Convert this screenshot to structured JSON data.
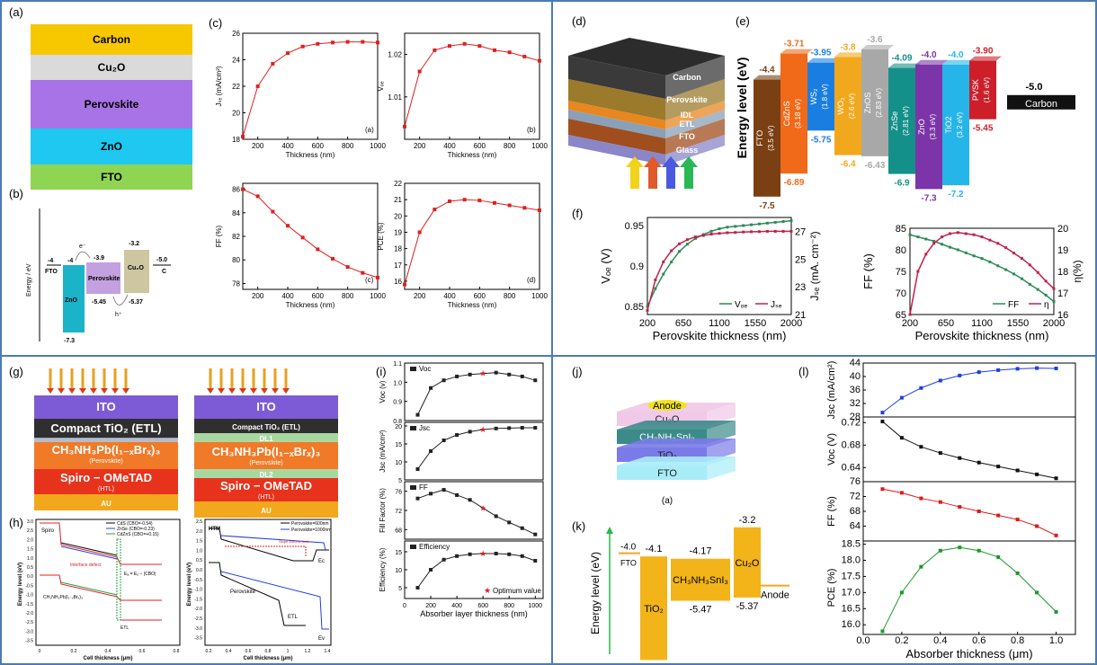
{
  "labels": {
    "a": "(a)",
    "b": "(b)",
    "c": "(c)",
    "d": "(d)",
    "e": "(e)",
    "f": "(f)",
    "g": "(g)",
    "h": "(h)",
    "i": "(i)",
    "j": "(j)",
    "k": "(k)",
    "l": "(l)"
  },
  "panel_a": {
    "layers": [
      {
        "name": "Carbon",
        "color": "#f7c700"
      },
      {
        "name": "Cu₂O",
        "color": "#dadada"
      },
      {
        "name": "Perovskite",
        "color": "#a873e6"
      },
      {
        "name": "ZnO",
        "color": "#1ec8f0"
      },
      {
        "name": "FTO",
        "color": "#8fd452"
      }
    ]
  },
  "panel_b": {
    "ylabel": "Energy / eV",
    "fto_label": "FTO",
    "fto_val": "-4",
    "zno_label": "ZnO",
    "zno_top": "-4",
    "zno_bot": "-7.3",
    "pvk_label": "Perovskite",
    "pvk_top": "-3.9",
    "pvk_bot": "-5.45",
    "cu2o_label": "Cu₂O",
    "cu2o_top": "-3.2",
    "cu2o_bot": "-5.37",
    "c_label": "C",
    "c_val": "-5.0",
    "electron": "e⁻",
    "hole": "h⁺"
  },
  "panel_d": {
    "layers": [
      {
        "name": "Carbon",
        "color": "#3a3a3a"
      },
      {
        "name": "Perovskite",
        "color": "#9b7a2b"
      },
      {
        "name": "IDL",
        "color": "#e8871f"
      },
      {
        "name": "ETL",
        "color": "#8aa0b8"
      },
      {
        "name": "FTO",
        "color": "#a04e1e"
      },
      {
        "name": "Glass",
        "color": "#8a86c8"
      }
    ]
  },
  "panel_e": {
    "ylabel": "Energy level (eV)",
    "materials": [
      {
        "name": "FTO",
        "gap": "(3.5 eV)",
        "top": "-4.4",
        "bot": "-7.5",
        "color": "#7a3f12"
      },
      {
        "name": "CdZnS",
        "gap": "(3.18 eV)",
        "top": "-3.71",
        "bot": "-6.89",
        "color": "#f06a1a"
      },
      {
        "name": "WS₂",
        "gap": "(1.8 eV)",
        "top": "-3.95",
        "bot": "-5.75",
        "color": "#1a7ee0"
      },
      {
        "name": "WO₃",
        "gap": "(2.6 eV)",
        "top": "-3.8",
        "bot": "-6.4",
        "color": "#f2a81c"
      },
      {
        "name": "ZnOS",
        "gap": "(2.83 eV)",
        "top": "-3.6",
        "bot": "-6.43",
        "color": "#a8a8a8"
      },
      {
        "name": "ZnSe",
        "gap": "(2.81 eV)",
        "top": "-4.09",
        "bot": "-6.9",
        "color": "#14908a"
      },
      {
        "name": "ZnO",
        "gap": "(3.3 eV)",
        "top": "-4.0",
        "bot": "-7.3",
        "color": "#7b35a8"
      },
      {
        "name": "TiO2",
        "gap": "(3.2 eV)",
        "top": "-4.0",
        "bot": "-7.2",
        "color": "#26b5e8"
      },
      {
        "name": "PVSK",
        "gap": "(1.6 eV)",
        "top": "-3.90",
        "bot": "-5.45",
        "color": "#cc1f2a"
      }
    ],
    "carbon": {
      "name": "Carbon",
      "val": "-5.0"
    }
  },
  "panel_g": {
    "left": [
      {
        "name": "ITO",
        "color": "#7e5bd6"
      },
      {
        "name": "Compact TiO₂ (ETL)",
        "color": "#2f2f2f"
      },
      {
        "name": "CH₃NH₃Pb(I₁₋ₓBrₓ)₃",
        "sub": "(Perovskite)",
        "color": "#f07a28"
      },
      {
        "name": "Spiro − OMeTAD",
        "sub": "(HTL)",
        "color": "#e8331c"
      },
      {
        "name": "AU",
        "color": "#f2a81c"
      }
    ],
    "right": [
      {
        "name": "ITO",
        "color": "#7e5bd6"
      },
      {
        "name": "Compact TiO₂ (ETL)",
        "color": "#2f2f2f"
      },
      {
        "name": "DL1",
        "color": "#a8d8a0"
      },
      {
        "name": "CH₃NH₃Pb(I₁₋ₓBrₓ)₃",
        "sub": "(Perovskite)",
        "color": "#f07a28"
      },
      {
        "name": "DL2",
        "color": "#a8d8a0"
      },
      {
        "name": "Spiro − OMeTAD",
        "sub": "(HTL)",
        "color": "#e8331c"
      },
      {
        "name": "AU",
        "color": "#f2a81c"
      }
    ]
  },
  "panel_h": {
    "left": {
      "xlabel": "Cell thickness (μm)",
      "ylabel": "Energy level (eV)",
      "legend": [
        "CdS (CBO=-0.54)",
        "ZnSe (CBO=-0.23)",
        "CdZnS (CBO=+0.15)"
      ],
      "spiro": "Spiro",
      "defect": "Interface defect",
      "pvk": "CH₃NH₃Pb(I₁₋ₓBrₓ)₃",
      "etl": "ETL",
      "eq": "Eₐ = Eₒ − |CBO|"
    },
    "right": {
      "xlabel": "Cell thickness (μm)",
      "ylabel": "Energy level (eV)",
      "legend": [
        "Perovskite=600nm",
        "Perovskite=1000nm"
      ],
      "htm": "HTM",
      "field": "Slope-Electric field",
      "pvk": "Perovskite",
      "etl": "ETL",
      "ec": "Ec",
      "ev": "Ev"
    }
  },
  "panel_j": {
    "layers": [
      {
        "name": "Cu₂O",
        "color": "#f0c8e8"
      },
      {
        "name": "CH₃NH₃SnI₃",
        "color": "#3c8a8a"
      },
      {
        "name": "TiO₂",
        "color": "#7a7ae8"
      },
      {
        "name": "FTO",
        "color": "#a8ecf8"
      }
    ],
    "anode": "Anode",
    "caption": "(a)"
  },
  "panel_k": {
    "ylabel": "Energy level (eV)",
    "fto": {
      "name": "FTO",
      "val": "-4.0"
    },
    "tio2": {
      "name": "TiO₂",
      "top": "-4.1",
      "bot": "-7.3"
    },
    "pvk": {
      "name": "CH₃NH₃SnI₃",
      "top": "-4.17",
      "bot": "-5.47"
    },
    "cu2o": {
      "name": "Cu₂O",
      "top": "-3.2",
      "bot": "-5.37"
    },
    "anode": {
      "name": "Anode"
    }
  },
  "chart_data": [
    {
      "id": "c1",
      "type": "line",
      "ylabel": "Jₛₑ (mA/cm²)",
      "xlabel": "Thickness (nm)",
      "sub": "(a)",
      "x": [
        100,
        200,
        300,
        400,
        500,
        600,
        700,
        800,
        900,
        1000
      ],
      "values": [
        18.2,
        22.0,
        23.7,
        24.5,
        25.0,
        25.2,
        25.3,
        25.35,
        25.35,
        25.3
      ],
      "xlim": [
        100,
        1000
      ],
      "ylim": [
        18,
        26
      ],
      "yticks": [
        18,
        20,
        22,
        24,
        26
      ],
      "xticks": [
        200,
        400,
        600,
        800,
        1000
      ],
      "color": "#e02020"
    },
    {
      "id": "c2",
      "type": "line",
      "ylabel": "Vₒₑ",
      "xlabel": "Thickness (nm)",
      "sub": "(b)",
      "x": [
        100,
        200,
        300,
        400,
        500,
        600,
        700,
        800,
        900,
        1000
      ],
      "values": [
        1.003,
        1.016,
        1.021,
        1.022,
        1.0225,
        1.022,
        1.021,
        1.0205,
        1.0195,
        1.0185
      ],
      "xlim": [
        100,
        1000
      ],
      "ylim": [
        1.0,
        1.025
      ],
      "yticks": [
        1.01,
        1.02
      ],
      "xticks": [
        200,
        400,
        600,
        800,
        1000
      ],
      "color": "#e02020"
    },
    {
      "id": "c3",
      "type": "line",
      "ylabel": "FF (%)",
      "xlabel": "Thickness (nm)",
      "sub": "(c)",
      "x": [
        100,
        200,
        300,
        400,
        500,
        600,
        700,
        800,
        900,
        1000
      ],
      "values": [
        86,
        85.4,
        84.1,
        82.9,
        81.9,
        80.9,
        80.1,
        79.4,
        78.9,
        78.5
      ],
      "xlim": [
        100,
        1000
      ],
      "ylim": [
        77.5,
        86.5
      ],
      "yticks": [
        78,
        80,
        82,
        84,
        86
      ],
      "xticks": [
        200,
        400,
        600,
        800,
        1000
      ],
      "color": "#e02020"
    },
    {
      "id": "c4",
      "type": "line",
      "ylabel": "PCE (%)",
      "xlabel": "Thickness (nm)",
      "sub": "(d)",
      "x": [
        100,
        200,
        300,
        400,
        500,
        600,
        700,
        800,
        900,
        1000
      ],
      "values": [
        15.8,
        19.0,
        20.4,
        20.9,
        21.0,
        20.95,
        20.8,
        20.65,
        20.5,
        20.35
      ],
      "xlim": [
        100,
        1000
      ],
      "ylim": [
        15.5,
        22
      ],
      "yticks": [
        16,
        17,
        18,
        19,
        20,
        21,
        22
      ],
      "xticks": [
        200,
        400,
        600,
        800,
        1000
      ],
      "color": "#e02020"
    },
    {
      "id": "f1",
      "type": "line",
      "xlabel": "Perovskite thickness (nm)",
      "ylabel": "Vₒₑ (V)",
      "y2label": "Jₛₑ (mA. cm⁻²)",
      "xlim": [
        200,
        2000
      ],
      "ylim": [
        0.84,
        0.96
      ],
      "y2lim": [
        21,
        28
      ],
      "xticks": [
        200,
        650,
        1100,
        1550,
        2000
      ],
      "yticks": [
        0.85,
        0.9,
        0.95
      ],
      "y2ticks": [
        21,
        23,
        25,
        27
      ],
      "legend": [
        "Vₒₑ",
        "Jₛₑ"
      ],
      "series": [
        {
          "name": "Vₒₑ",
          "axis": "y",
          "color": "#2e8b57",
          "x": [
            200,
            300,
            400,
            500,
            600,
            700,
            800,
            900,
            1000,
            1100,
            1200,
            1300,
            1400,
            1500,
            1600,
            1700,
            1800,
            1900,
            2000
          ],
          "values": [
            0.85,
            0.872,
            0.89,
            0.905,
            0.918,
            0.927,
            0.934,
            0.939,
            0.943,
            0.946,
            0.948,
            0.949,
            0.95,
            0.951,
            0.952,
            0.953,
            0.954,
            0.955,
            0.956
          ]
        },
        {
          "name": "Jₛₑ",
          "axis": "y2",
          "color": "#c0224a",
          "x": [
            200,
            300,
            400,
            500,
            600,
            700,
            800,
            900,
            1000,
            1100,
            1200,
            1300,
            1400,
            1500,
            1600,
            1700,
            1800,
            1900,
            2000
          ],
          "values": [
            21.3,
            23.5,
            24.8,
            25.6,
            26.1,
            26.4,
            26.6,
            26.7,
            26.8,
            26.85,
            26.9,
            26.92,
            26.95,
            26.97,
            26.98,
            27.0,
            27.0,
            27.0,
            27.0
          ]
        }
      ]
    },
    {
      "id": "f2",
      "type": "line",
      "xlabel": "Perovskite thickness (nm)",
      "ylabel": "FF (%)",
      "y2label": "η(%)",
      "xlim": [
        200,
        2000
      ],
      "ylim": [
        65,
        85
      ],
      "y2lim": [
        16,
        20
      ],
      "xticks": [
        200,
        650,
        1100,
        1550,
        2000
      ],
      "yticks": [
        65,
        70,
        75,
        80,
        85
      ],
      "y2ticks": [
        16,
        17,
        18,
        19,
        20
      ],
      "legend": [
        "FF",
        "η"
      ],
      "series": [
        {
          "name": "FF",
          "axis": "y",
          "color": "#2e8b57",
          "x": [
            200,
            300,
            400,
            500,
            600,
            700,
            800,
            900,
            1000,
            1100,
            1200,
            1300,
            1400,
            1500,
            1600,
            1700,
            1800,
            1900,
            2000
          ],
          "values": [
            83.5,
            83.0,
            82.5,
            82.0,
            81.3,
            80.6,
            80.0,
            79.3,
            78.6,
            78.0,
            77.2,
            76.3,
            75.4,
            74.4,
            73.3,
            72.0,
            70.8,
            69.5,
            68.0
          ]
        },
        {
          "name": "η",
          "axis": "y2",
          "color": "#c0224a",
          "x": [
            200,
            300,
            400,
            500,
            600,
            700,
            800,
            900,
            1000,
            1100,
            1200,
            1300,
            1400,
            1500,
            1600,
            1700,
            1800,
            1900,
            2000
          ],
          "values": [
            16.0,
            18.0,
            18.8,
            19.3,
            19.6,
            19.75,
            19.8,
            19.75,
            19.7,
            19.6,
            19.45,
            19.3,
            19.1,
            18.85,
            18.6,
            18.3,
            17.95,
            17.55,
            17.2
          ]
        }
      ]
    },
    {
      "id": "i1",
      "type": "line",
      "ylabel": "Voc (v)",
      "legend": "Voc",
      "x": [
        100,
        200,
        300,
        400,
        500,
        600,
        700,
        800,
        900,
        1000
      ],
      "values": [
        0.83,
        0.97,
        1.01,
        1.03,
        1.04,
        1.045,
        1.05,
        1.04,
        1.03,
        1.01
      ],
      "ylim": [
        0.8,
        1.1
      ],
      "yticks": [
        0.8,
        0.9,
        1.0,
        1.1
      ],
      "star": 5
    },
    {
      "id": "i2",
      "type": "line",
      "ylabel": "Jsc (mA/cm²)",
      "legend": "Jsc",
      "x": [
        100,
        200,
        300,
        400,
        500,
        600,
        700,
        800,
        900,
        1000
      ],
      "values": [
        8,
        13,
        16,
        17.5,
        18.4,
        19,
        19.3,
        19.4,
        19.5,
        19.5
      ],
      "ylim": [
        5,
        21
      ],
      "yticks": [
        5,
        10,
        15,
        20
      ],
      "star": 5
    },
    {
      "id": "i3",
      "type": "line",
      "ylabel": "Fill Factor (%)",
      "legend": "FF",
      "x": [
        100,
        200,
        300,
        400,
        500,
        600,
        700,
        800,
        900,
        1000
      ],
      "values": [
        74.5,
        75.5,
        76.3,
        75.2,
        74.2,
        72.5,
        70.8,
        69.5,
        68.3,
        67.0
      ],
      "ylim": [
        66,
        78
      ],
      "yticks": [
        68,
        72,
        76
      ],
      "star": 5
    },
    {
      "id": "i4",
      "type": "line",
      "ylabel": "Efficiency (%)",
      "legend": "Efficiency",
      "x": [
        100,
        200,
        300,
        400,
        500,
        600,
        700,
        800,
        900,
        1000
      ],
      "values": [
        5,
        10,
        12.8,
        13.8,
        14.3,
        14.5,
        14.5,
        14.3,
        13.8,
        12.5
      ],
      "ylim": [
        2,
        18
      ],
      "yticks": [
        5,
        10,
        15
      ],
      "star": 5,
      "xlabel": "Absorber layer thickness (nm)",
      "xticks": [
        0,
        200,
        400,
        600,
        800,
        1000
      ],
      "note": "Optimum value"
    },
    {
      "id": "l1",
      "type": "line",
      "ylabel": "Jsc (mA/cm²)",
      "x": [
        0.1,
        0.2,
        0.3,
        0.4,
        0.5,
        0.6,
        0.7,
        0.8,
        0.9,
        1.0
      ],
      "values": [
        29.3,
        33.7,
        36.6,
        38.8,
        40.3,
        41.3,
        41.9,
        42.3,
        42.5,
        42.4
      ],
      "ylim": [
        28,
        44
      ],
      "yticks": [
        28,
        32,
        36,
        40,
        44
      ],
      "color": "#1f3fe0"
    },
    {
      "id": "l2",
      "type": "line",
      "ylabel": "Voc (V)",
      "x": [
        0.1,
        0.2,
        0.3,
        0.4,
        0.5,
        0.6,
        0.7,
        0.8,
        0.9,
        1.0
      ],
      "values": [
        0.722,
        0.693,
        0.677,
        0.666,
        0.657,
        0.649,
        0.642,
        0.635,
        0.628,
        0.621
      ],
      "ylim": [
        0.615,
        0.73
      ],
      "yticks": [
        0.64,
        0.68,
        0.72
      ],
      "color": "#111111"
    },
    {
      "id": "l3",
      "type": "line",
      "ylabel": "FF (%)",
      "x": [
        0.1,
        0.2,
        0.3,
        0.4,
        0.5,
        0.6,
        0.7,
        0.8,
        0.9,
        1.0
      ],
      "values": [
        74.0,
        73.0,
        71.5,
        70.5,
        69.2,
        68.0,
        66.9,
        65.8,
        64.0,
        61.5
      ],
      "ylim": [
        60,
        76
      ],
      "yticks": [
        64,
        68,
        72,
        76
      ],
      "color": "#e01a1a"
    },
    {
      "id": "l4",
      "type": "line",
      "ylabel": "PCE (%)",
      "x": [
        0.1,
        0.2,
        0.3,
        0.4,
        0.5,
        0.6,
        0.7,
        0.8,
        0.9,
        1.0
      ],
      "values": [
        15.8,
        17.0,
        17.8,
        18.3,
        18.4,
        18.3,
        18.1,
        17.6,
        17.0,
        16.4
      ],
      "ylim": [
        15.7,
        18.6
      ],
      "yticks": [
        16.0,
        16.5,
        17.0,
        17.5,
        18.0,
        18.5
      ],
      "color": "#1a9a2a",
      "xlabel": "Absorber thickness (μm)",
      "xticks": [
        0.0,
        0.2,
        0.4,
        0.6,
        0.8,
        1.0
      ]
    }
  ]
}
